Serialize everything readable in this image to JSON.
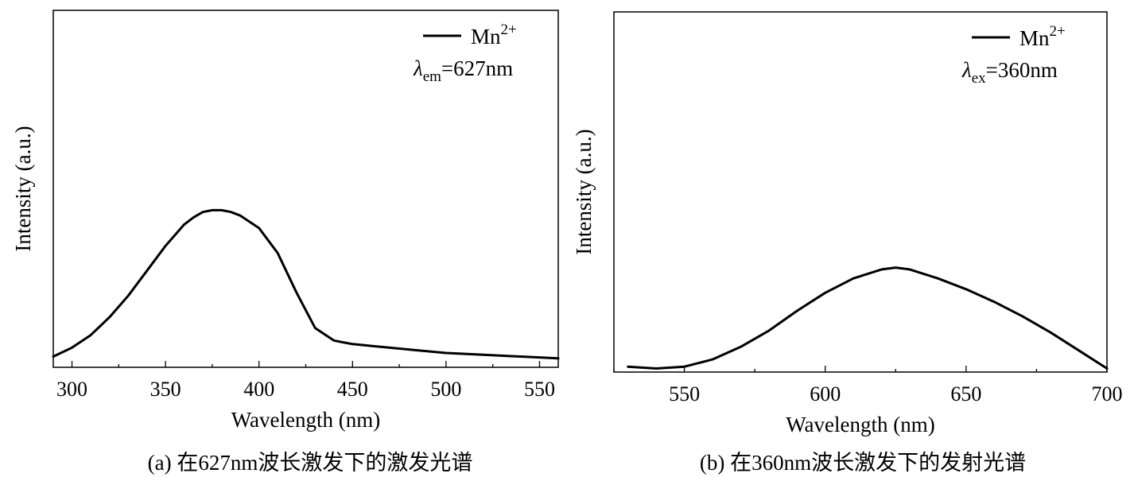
{
  "chart_data": [
    {
      "type": "line",
      "xlabel": "Wavelength (nm)",
      "ylabel": "Intensity (a.u.)",
      "xlim": [
        290,
        560
      ],
      "ylim": [
        0,
        1.0
      ],
      "xticks": [
        300,
        350,
        400,
        450,
        500,
        550
      ],
      "yticks_shown": false,
      "legend": {
        "placement": "top-right",
        "label_base": "Mn",
        "label_sup": "2+",
        "note_symbol": "λ",
        "note_sub": "em",
        "note_rest": "=627nm"
      },
      "caption": "(a) 在627nm波长激发下的激发光谱",
      "series": [
        {
          "name": "Mn2+",
          "x": [
            290,
            300,
            310,
            320,
            330,
            340,
            350,
            360,
            365,
            370,
            375,
            380,
            385,
            390,
            400,
            410,
            420,
            430,
            440,
            445,
            450,
            460,
            480,
            500,
            520,
            540,
            560
          ],
          "y": [
            0.03,
            0.055,
            0.09,
            0.14,
            0.2,
            0.27,
            0.34,
            0.4,
            0.42,
            0.435,
            0.44,
            0.44,
            0.435,
            0.425,
            0.39,
            0.32,
            0.21,
            0.11,
            0.075,
            0.07,
            0.065,
            0.06,
            0.05,
            0.04,
            0.035,
            0.03,
            0.025
          ]
        }
      ]
    },
    {
      "type": "line",
      "xlabel": "Wavelength (nm)",
      "ylabel": "Intensity (a.u.)",
      "xlim": [
        525,
        700
      ],
      "ylim": [
        0,
        1.0
      ],
      "xticks": [
        550,
        600,
        650,
        700
      ],
      "yticks_shown": false,
      "legend": {
        "placement": "top-right",
        "label_base": "Mn",
        "label_sup": "2+",
        "note_symbol": "λ",
        "note_sub": "ex",
        "note_rest": "=360nm"
      },
      "caption": "(b) 在360nm波长激发下的发射光谱",
      "series": [
        {
          "name": "Mn2+",
          "x": [
            530,
            540,
            550,
            560,
            570,
            580,
            590,
            600,
            610,
            620,
            625,
            630,
            640,
            650,
            660,
            670,
            680,
            690,
            700
          ],
          "y": [
            0.015,
            0.01,
            0.015,
            0.035,
            0.07,
            0.115,
            0.17,
            0.22,
            0.26,
            0.285,
            0.29,
            0.285,
            0.26,
            0.23,
            0.195,
            0.155,
            0.11,
            0.06,
            0.01
          ]
        }
      ]
    }
  ]
}
